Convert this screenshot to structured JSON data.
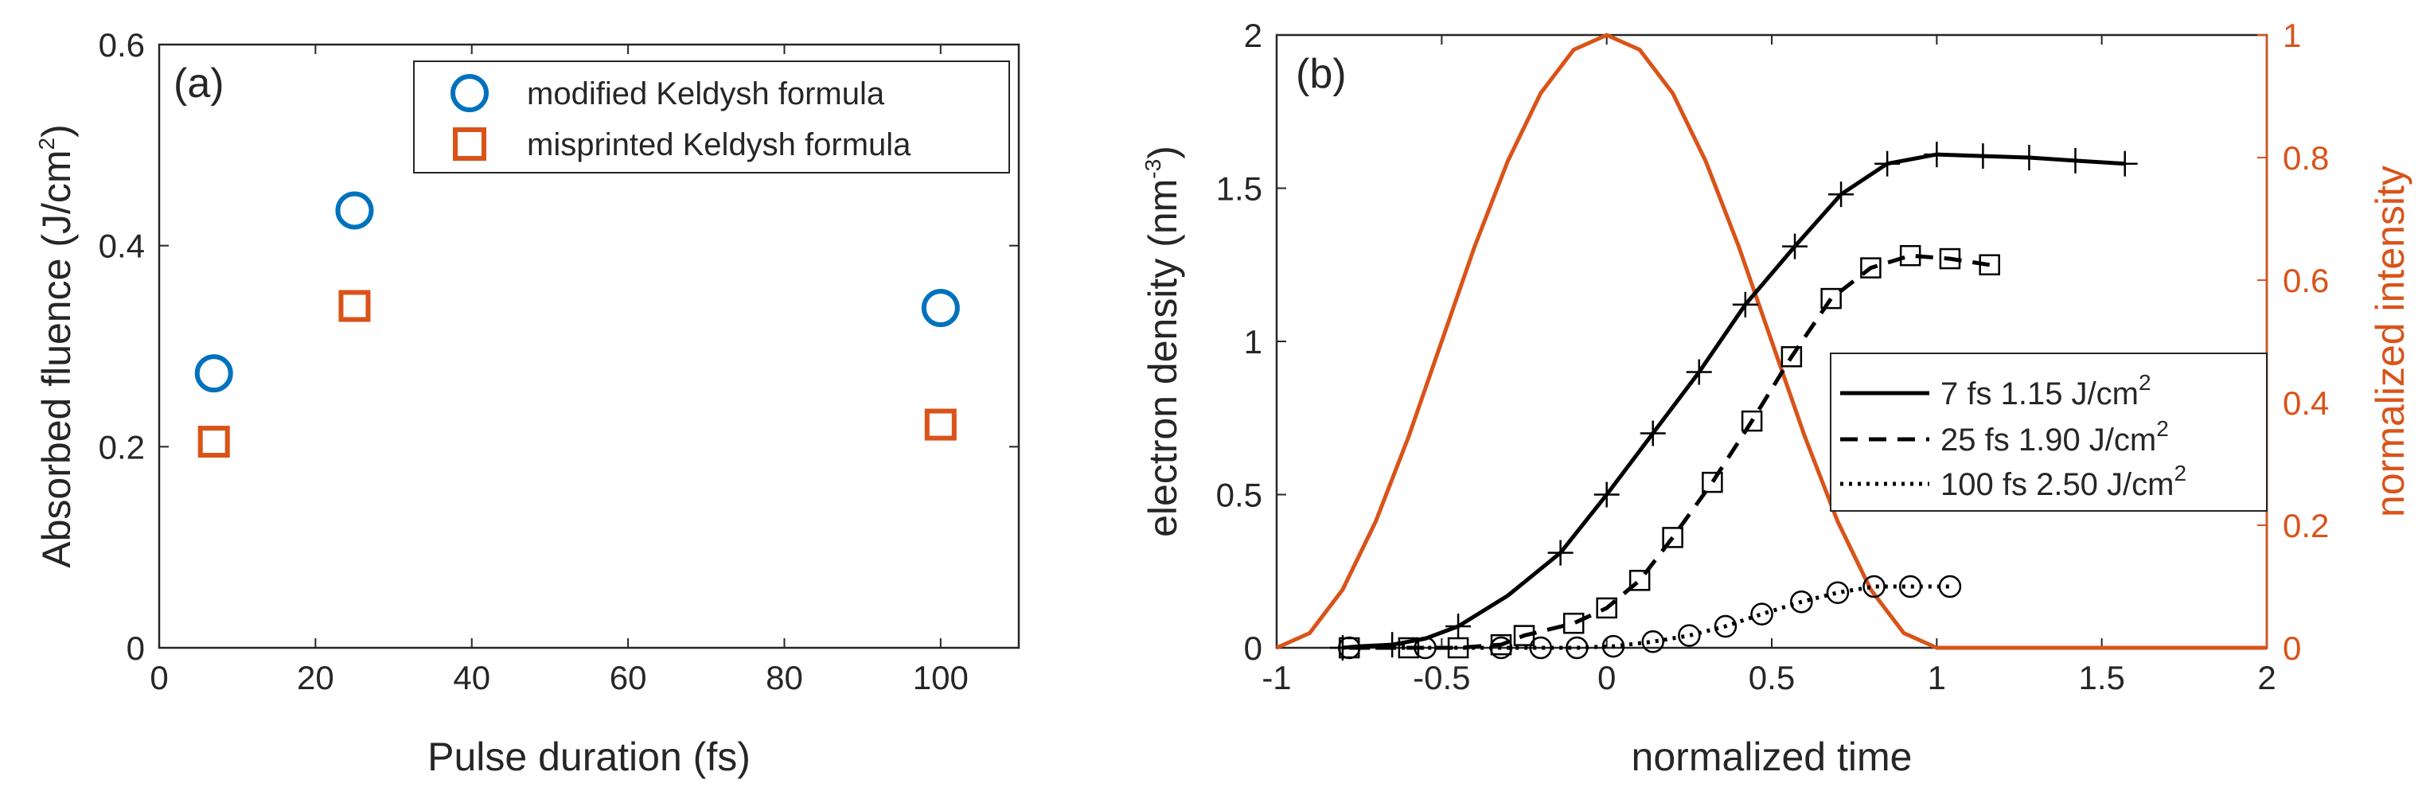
{
  "chart_data": [
    {
      "type": "scatter",
      "panel_label": "(a)",
      "xlabel": "Pulse duration (fs)",
      "ylabel": {
        "base": "Absorbed fluence (J/cm",
        "sup": "2",
        "tail": ")"
      },
      "xlim": [
        0,
        110
      ],
      "ylim": [
        0,
        0.6
      ],
      "xticks": [
        0,
        20,
        40,
        60,
        80,
        100
      ],
      "yticks": [
        0,
        0.2,
        0.4,
        0.6
      ],
      "xticklabels": [
        "0",
        "20",
        "40",
        "60",
        "80",
        "100"
      ],
      "yticklabels": [
        "0",
        "0.2",
        "0.4",
        "0.6"
      ],
      "legend_position": "top-right",
      "series": [
        {
          "name": "modified Keldysh formula",
          "marker": "circle",
          "color": "#0072BD",
          "x": [
            7,
            25,
            100
          ],
          "y": [
            0.273,
            0.435,
            0.338
          ]
        },
        {
          "name": "misprinted Keldysh formula",
          "marker": "square",
          "color": "#D95319",
          "x": [
            7,
            25,
            100
          ],
          "y": [
            0.205,
            0.34,
            0.222
          ]
        }
      ]
    },
    {
      "type": "line",
      "panel_label": "(b)",
      "xlabel": "normalized time",
      "ylabel": {
        "base": "electron density (nm",
        "sup": "-3",
        "tail": ")"
      },
      "ylabel_right": "normalized intensity",
      "xlim": [
        -1,
        2
      ],
      "ylim": [
        0,
        2
      ],
      "ylim_right": [
        0,
        1
      ],
      "xticks": [
        -1,
        -0.5,
        0,
        0.5,
        1,
        1.5,
        2
      ],
      "xticklabels": [
        "-1",
        "-0.5",
        "0",
        "0.5",
        "1",
        "1.5",
        "2"
      ],
      "yticks": [
        0,
        0.5,
        1,
        1.5,
        2
      ],
      "yticklabels": [
        "0",
        "0.5",
        "1",
        "1.5",
        "2"
      ],
      "yticks_right": [
        0,
        0.2,
        0.4,
        0.6,
        0.8,
        1
      ],
      "yticklabels_right": [
        "0",
        "0.2",
        "0.4",
        "0.6",
        "0.8",
        "1"
      ],
      "legend_position": "center-right",
      "series": [
        {
          "name": "7 fs 1.15 J/cm",
          "name_sup": "2",
          "style": "solid",
          "marker": "plus",
          "color": "#000000",
          "x": [
            -0.8,
            -0.75,
            -0.65,
            -0.55,
            -0.45,
            -0.3,
            -0.14,
            0.0,
            0.14,
            0.28,
            0.42,
            0.57,
            0.71,
            0.85,
            1.0,
            1.14,
            1.28,
            1.42,
            1.57
          ],
          "y": [
            0.0,
            0.005,
            0.01,
            0.03,
            0.07,
            0.17,
            0.31,
            0.5,
            0.7,
            0.9,
            1.12,
            1.31,
            1.48,
            1.58,
            1.61,
            1.605,
            1.6,
            1.59,
            1.58
          ]
        },
        {
          "name": "25 fs 1.90 J/cm",
          "name_sup": "2",
          "style": "dashed",
          "marker": "square",
          "color": "#000000",
          "x": [
            -0.78,
            -0.6,
            -0.45,
            -0.32,
            -0.25,
            -0.1,
            0.0,
            0.1,
            0.2,
            0.32,
            0.44,
            0.56,
            0.68,
            0.8,
            0.92,
            1.04,
            1.16
          ],
          "y": [
            0.0,
            0.0,
            0.0,
            0.01,
            0.04,
            0.08,
            0.13,
            0.22,
            0.36,
            0.54,
            0.74,
            0.95,
            1.14,
            1.24,
            1.28,
            1.27,
            1.25
          ]
        },
        {
          "name": "100 fs 2.50 J/cm",
          "name_sup": "2",
          "style": "dotted",
          "marker": "circle",
          "color": "#000000",
          "x": [
            -0.78,
            -0.55,
            -0.32,
            -0.2,
            -0.09,
            0.02,
            0.14,
            0.25,
            0.36,
            0.47,
            0.59,
            0.7,
            0.81,
            0.92,
            1.04
          ],
          "y": [
            0.0,
            0.0,
            0.0,
            0.0,
            0.0,
            0.005,
            0.02,
            0.04,
            0.07,
            0.11,
            0.15,
            0.18,
            0.2,
            0.2,
            0.2
          ]
        }
      ],
      "series_right": [
        {
          "name": "normalized intensity",
          "style": "solid",
          "color": "#D95319",
          "x": [
            -1,
            -0.9,
            -0.8,
            -0.7,
            -0.6,
            -0.5,
            -0.4,
            -0.3,
            -0.2,
            -0.1,
            0,
            0.1,
            0.2,
            0.3,
            0.4,
            0.5,
            0.6,
            0.7,
            0.8,
            0.9,
            1.0,
            1.5,
            2.0
          ],
          "y": [
            0.0,
            0.024,
            0.095,
            0.206,
            0.345,
            0.5,
            0.655,
            0.794,
            0.905,
            0.976,
            1.0,
            0.976,
            0.905,
            0.794,
            0.655,
            0.5,
            0.345,
            0.206,
            0.095,
            0.024,
            0.0,
            0.0,
            0.0
          ]
        }
      ]
    }
  ]
}
